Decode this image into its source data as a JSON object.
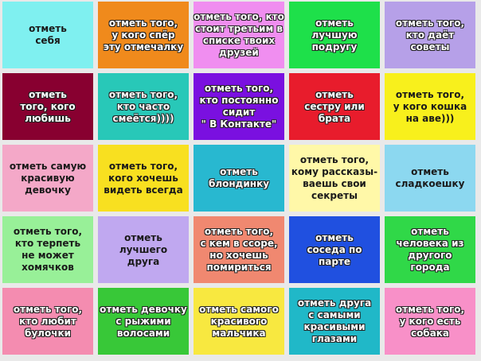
{
  "tiles": [
    [
      "отметь\nсебя",
      "отметь того,\nу кого спёр\nэту отмечалку",
      "отметь того, кто\nстоит третьим в\nсписке твоих\nдрузей",
      "отметь\nлучшую\nподругу",
      "отметь того,\nкто даёт\nсоветы"
    ],
    [
      "отметь\nтого, кого\nлюбишь",
      "отметь того,\nкто часто\nсмеётся))))",
      "отметь того,\nкто постоянно\nсидит\n\" В Контакте\"",
      "отметь\nсестру или\nбрата",
      "отметь того,\nу кого кошка\nна аве)))"
    ],
    [
      "отметь самую\nкрасивую\nдевочку",
      "отметь того,\nкого хочешь\nвидеть всегда",
      "отметь\nблондинку",
      "отметь того,\nкому рассказы-\nваешь свои\nсекреты",
      "отметь\nсладкоешку"
    ],
    [
      "отметь того,\nкто терпеть\nне может\nхомячков",
      "отметь\nлучшего\nдруга",
      "отметь того,\nс кем в ссоре,\nно хочешь\nпомириться",
      "отметь\nсоседа по\nпарте",
      "отметь\nчеловека из\nдругого\nгорода"
    ],
    [
      "отметь того,\nкто любит\nбулочки",
      "отметь девочку\nс рыжими\nволосами",
      "отметь самого\nкрасивого\nмальчика",
      "отметь друга\nс самыми\nкрасивыми\nглазами",
      "отметь того,\nу кого есть\nсобака"
    ]
  ]
}
